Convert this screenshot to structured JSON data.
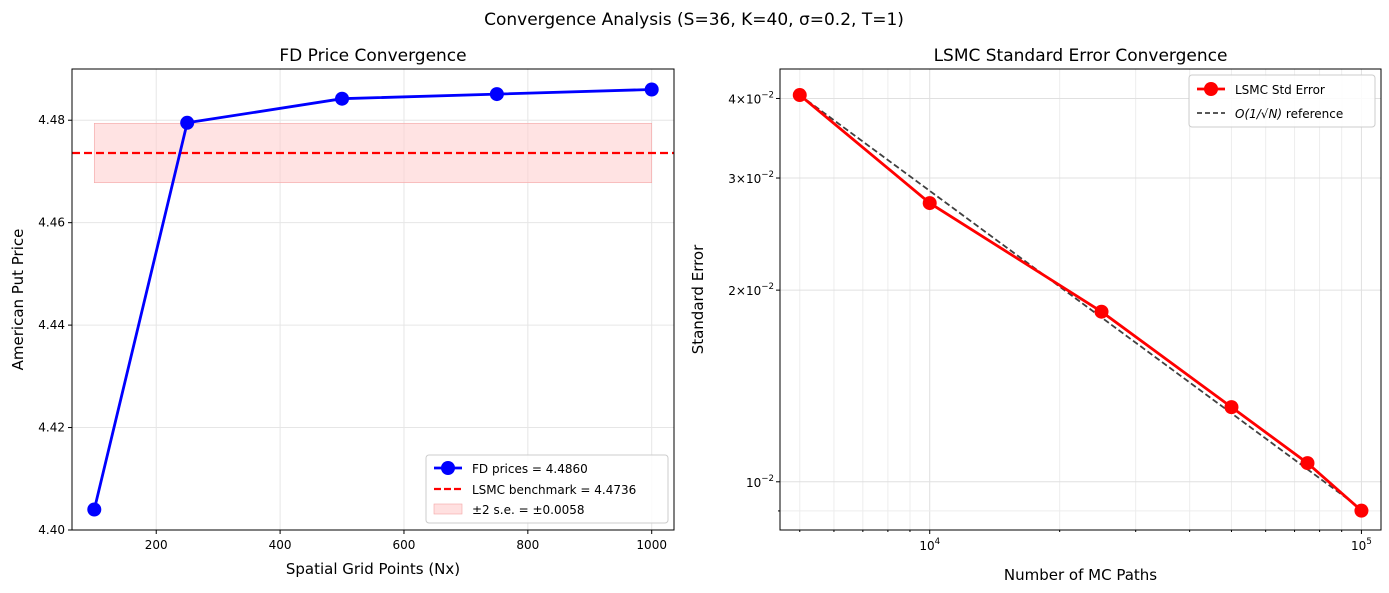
{
  "figure": {
    "suptitle": "Convergence Analysis (S=36, K=40, σ=0.2, T=1)"
  },
  "chart_data": [
    {
      "type": "line",
      "title": "FD Price Convergence",
      "xlabel": "Spatial Grid Points (Nx)",
      "ylabel": "American Put Price",
      "xlim": [
        64,
        1036
      ],
      "ylim": [
        4.4,
        4.49
      ],
      "xticks": [
        200,
        400,
        600,
        800,
        1000
      ],
      "yticks": [
        4.4,
        4.42,
        4.44,
        4.46,
        4.48
      ],
      "xtick_labels": [
        "200",
        "400",
        "600",
        "800",
        "1000"
      ],
      "ytick_labels": [
        "4.40",
        "4.42",
        "4.44",
        "4.46",
        "4.48"
      ],
      "grid": true,
      "legend_loc": "lower right",
      "series": [
        {
          "name": "FD prices = 4.4860",
          "color": "#0000ff",
          "style": "solid",
          "marker": "circle",
          "x": [
            100,
            250,
            500,
            750,
            1000
          ],
          "y": [
            4.404,
            4.4795,
            4.4842,
            4.4851,
            4.486
          ]
        }
      ],
      "hline": {
        "name": "LSMC benchmark = 4.4736",
        "y": 4.4736,
        "color": "#ff0000",
        "style": "dashed"
      },
      "band": {
        "name": "±2 s.e. = ±0.0058",
        "y0": 4.4678,
        "y1": 4.4794,
        "x0": 100,
        "x1": 1000,
        "color": "#ffcccc"
      }
    },
    {
      "type": "line",
      "title": "LSMC Standard Error Convergence",
      "xlabel": "Number of MC Paths",
      "ylabel": "Standard Error",
      "xscale": "log",
      "yscale": "log",
      "xlim": [
        4500,
        111000
      ],
      "ylim": [
        0.0084,
        0.0445
      ],
      "xtick_labels": [
        {
          "base": "10",
          "exp": "4",
          "value": 10000
        },
        {
          "base": "10",
          "exp": "5",
          "value": 100000
        }
      ],
      "ytick_labels": [
        {
          "mant": "4",
          "base": "10",
          "exp": "−2",
          "value": 0.04
        },
        {
          "mant": "3",
          "base": "10",
          "exp": "−2",
          "value": 0.03
        },
        {
          "mant": "2",
          "base": "10",
          "exp": "−2",
          "value": 0.02
        },
        {
          "mant": "",
          "base": "10",
          "exp": "−2",
          "value": 0.01
        }
      ],
      "grid": true,
      "legend_loc": "upper right",
      "series": [
        {
          "name": "LSMC Std Error",
          "color": "#ff0000",
          "style": "solid",
          "marker": "circle",
          "x": [
            5000,
            10000,
            25000,
            50000,
            75000,
            100000
          ],
          "y": [
            0.0405,
            0.0274,
            0.0185,
            0.0131,
            0.0107,
            0.00901
          ]
        },
        {
          "name": "reference",
          "label_math": "O(1/√N)",
          "label_suffix": "reference",
          "color": "#404040",
          "style": "dashed",
          "marker": "none",
          "x": [
            5000,
            100000
          ],
          "y": [
            0.0405,
            0.00906
          ]
        }
      ]
    }
  ]
}
